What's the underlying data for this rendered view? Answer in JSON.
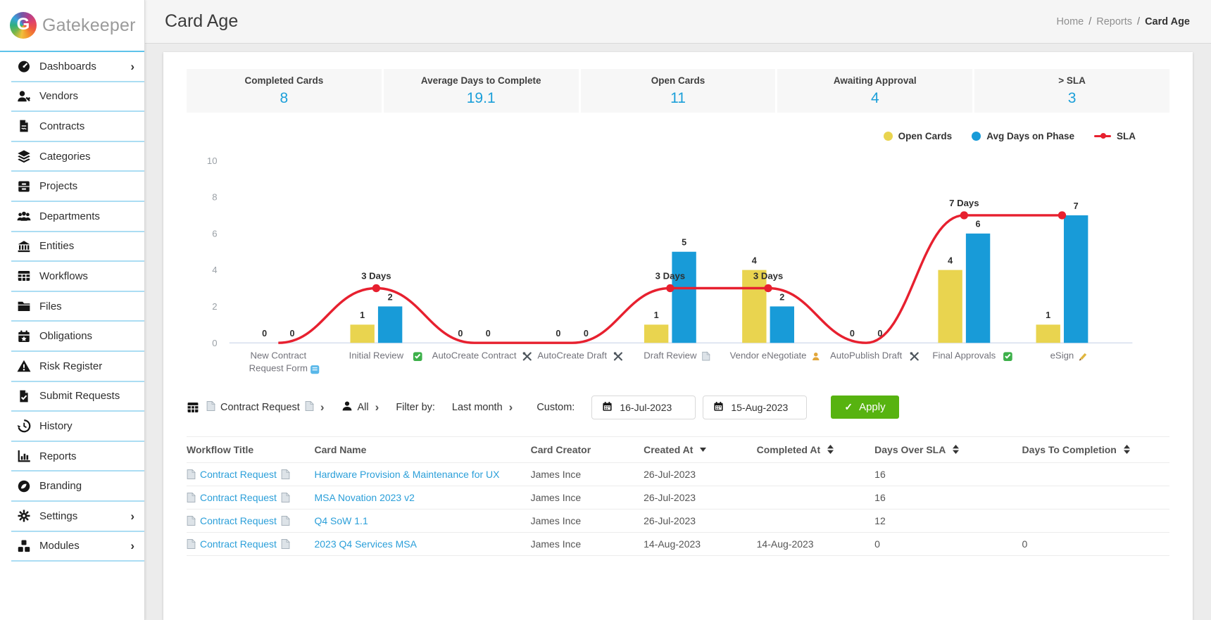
{
  "brand": {
    "name": "Gatekeeper"
  },
  "sidebar": {
    "items": [
      {
        "label": "Dashboards",
        "icon": "gauge-icon",
        "expandable": true
      },
      {
        "label": "Vendors",
        "icon": "vendor-person-icon",
        "expandable": false
      },
      {
        "label": "Contracts",
        "icon": "contract-doc-icon",
        "expandable": false
      },
      {
        "label": "Categories",
        "icon": "layers-icon",
        "expandable": false
      },
      {
        "label": "Projects",
        "icon": "drawer-icon",
        "expandable": false
      },
      {
        "label": "Departments",
        "icon": "people-icon",
        "expandable": false
      },
      {
        "label": "Entities",
        "icon": "bank-icon",
        "expandable": false
      },
      {
        "label": "Workflows",
        "icon": "grid-icon",
        "expandable": false
      },
      {
        "label": "Files",
        "icon": "folder-icon",
        "expandable": false
      },
      {
        "label": "Obligations",
        "icon": "calendar-star-icon",
        "expandable": false
      },
      {
        "label": "Risk Register",
        "icon": "warning-icon",
        "expandable": false
      },
      {
        "label": "Submit Requests",
        "icon": "doc-check-icon",
        "expandable": false
      },
      {
        "label": "History",
        "icon": "history-icon",
        "expandable": false
      },
      {
        "label": "Reports",
        "icon": "bar-chart-icon",
        "expandable": false
      },
      {
        "label": "Branding",
        "icon": "branding-icon",
        "expandable": false
      },
      {
        "label": "Settings",
        "icon": "gear-icon",
        "expandable": true
      },
      {
        "label": "Modules",
        "icon": "cubes-icon",
        "expandable": true
      }
    ]
  },
  "header": {
    "title": "Card Age",
    "breadcrumb": [
      "Home",
      "Reports",
      "Card Age"
    ]
  },
  "stats": [
    {
      "label": "Completed Cards",
      "value": "8"
    },
    {
      "label": "Average Days to Complete",
      "value": "19.1"
    },
    {
      "label": "Open Cards",
      "value": "11"
    },
    {
      "label": "Awaiting Approval",
      "value": "4"
    },
    {
      "label": "> SLA",
      "value": "3"
    }
  ],
  "chart_data": {
    "type": "bar",
    "subtype": "grouped bars with smooth SLA line overlay",
    "categories": [
      "New Contract Request Form",
      "Initial Review",
      "AutoCreate Contract",
      "AutoCreate Draft",
      "Draft Review",
      "Vendor eNegotiate",
      "AutoPublish Draft",
      "Final Approvals",
      "eSign"
    ],
    "category_icons": [
      "form-icon",
      "check-icon",
      "tools-icon",
      "tools-icon",
      "doc-icon",
      "person-icon",
      "tools-icon",
      "check-icon",
      "pen-icon"
    ],
    "series": [
      {
        "name": "Open Cards",
        "type": "bar",
        "color": "#e9d44f",
        "values": [
          0,
          1,
          0,
          0,
          1,
          4,
          0,
          4,
          1
        ]
      },
      {
        "name": "Avg Days on Phase",
        "type": "bar",
        "color": "#189bd8",
        "values": [
          0,
          2,
          0,
          0,
          5,
          2,
          0,
          6,
          7
        ]
      },
      {
        "name": "SLA",
        "type": "line",
        "color": "#e7202f",
        "values": [
          0,
          3,
          0,
          0,
          3,
          3,
          0,
          7,
          7
        ],
        "point_labels": [
          "",
          "3 Days",
          "",
          "",
          "3 Days",
          "3 Days",
          "",
          "7 Days",
          ""
        ]
      }
    ],
    "ylim": [
      0,
      10
    ],
    "yticks": [
      0,
      2,
      4,
      6,
      8,
      10
    ],
    "legend_position": "top-right",
    "grid": false
  },
  "filters": {
    "workflow": "Contract Request",
    "assignee": "All",
    "filter_by_label": "Filter by:",
    "period": "Last month",
    "custom_label": "Custom:",
    "date_from": "16-Jul-2023",
    "date_to": "15-Aug-2023",
    "apply_label": "Apply"
  },
  "table": {
    "columns": [
      {
        "label": "Workflow Title",
        "sort": null
      },
      {
        "label": "Card Name",
        "sort": null
      },
      {
        "label": "Card Creator",
        "sort": null
      },
      {
        "label": "Created At",
        "sort": "desc"
      },
      {
        "label": "Completed At",
        "sort": "both"
      },
      {
        "label": "Days Over SLA",
        "sort": "both"
      },
      {
        "label": "Days To Completion",
        "sort": "both"
      }
    ],
    "rows": [
      {
        "workflow": "Contract Request",
        "card_name": "Hardware Provision & Maintenance for UX",
        "creator": "James Ince",
        "created": "26-Jul-2023",
        "completed": "",
        "days_over_sla": "16",
        "days_to_completion": ""
      },
      {
        "workflow": "Contract Request",
        "card_name": "MSA Novation 2023 v2",
        "creator": "James Ince",
        "created": "26-Jul-2023",
        "completed": "",
        "days_over_sla": "16",
        "days_to_completion": ""
      },
      {
        "workflow": "Contract Request",
        "card_name": "Q4 SoW 1.1",
        "creator": "James Ince",
        "created": "26-Jul-2023",
        "completed": "",
        "days_over_sla": "12",
        "days_to_completion": ""
      },
      {
        "workflow": "Contract Request",
        "card_name": "2023 Q4 Services MSA",
        "creator": "James Ince",
        "created": "14-Aug-2023",
        "completed": "14-Aug-2023",
        "days_over_sla": "0",
        "days_to_completion": "0"
      }
    ]
  },
  "colors": {
    "accent_blue": "#1b9fd9",
    "link_blue": "#2b9fd9",
    "bar_yellow": "#e9d44f",
    "bar_blue": "#189bd8",
    "sla_red": "#e7202f",
    "apply_green": "#57b310",
    "sidebar_divider": "#abddf3"
  }
}
